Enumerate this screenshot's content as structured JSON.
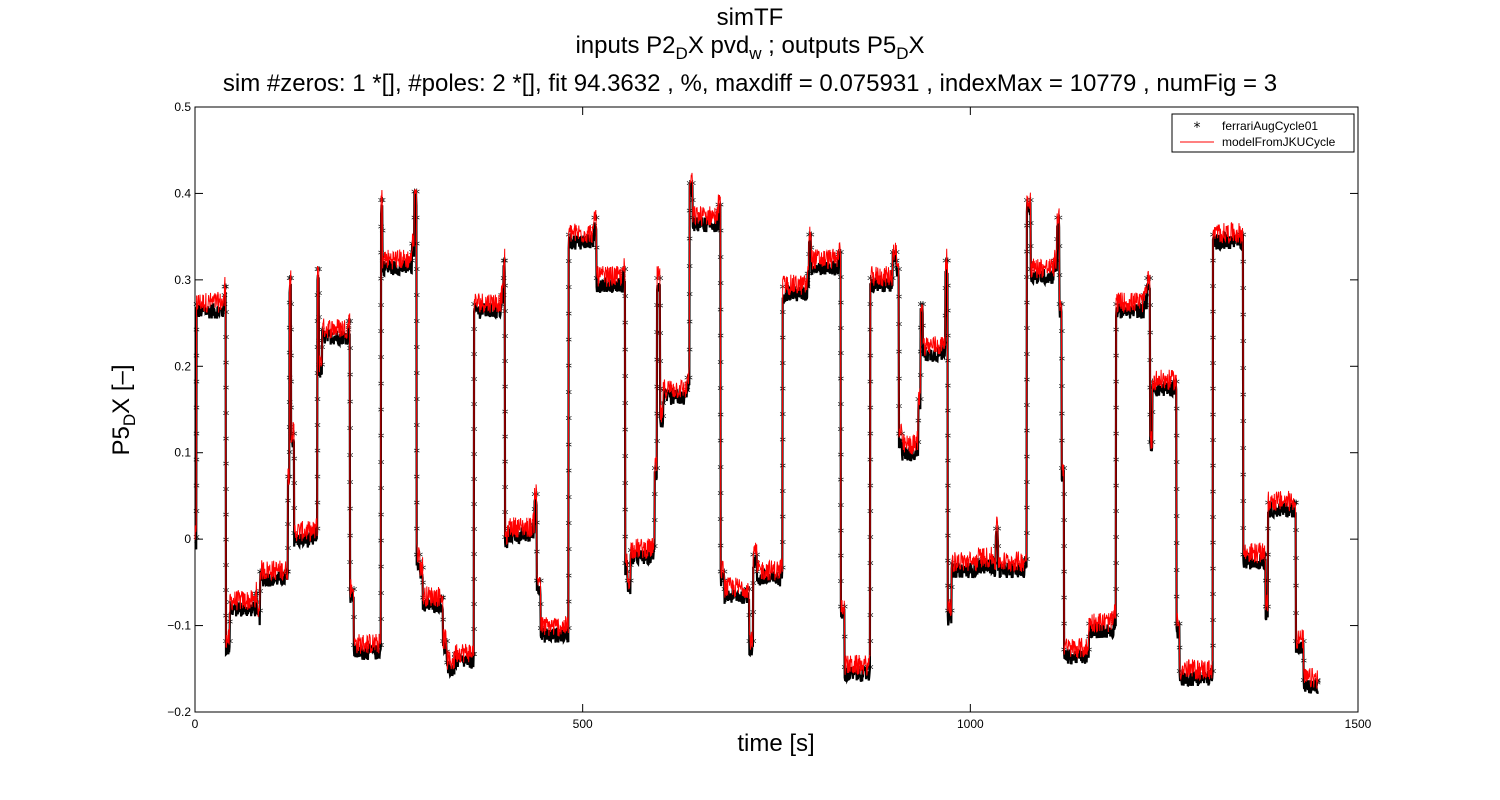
{
  "title": {
    "line1": "simTF",
    "line2_pre": "inputs P2",
    "line2_sub1": "D",
    "line2_mid": "X pvd",
    "line2_sub2": "w",
    "line2_mid2": " ; outputs P5",
    "line2_sub3": "D",
    "line2_post": "X",
    "line3": "sim #zeros:  1 *[], #poles:  2 *[], fit  94.3632 , %, maxdiff =  0.075931 , indexMax =  10779 , numFig =  3"
  },
  "axes": {
    "xlabel": "time [s]",
    "ylabel_pre": "P5",
    "ylabel_sub": "D",
    "ylabel_post": "X [–]"
  },
  "colors": {
    "measured": "#000000",
    "model": "#ff0000"
  },
  "chart_data": {
    "type": "line",
    "xlim": [
      0,
      1500
    ],
    "ylim": [
      -0.2,
      0.5
    ],
    "xticks": [
      0,
      500,
      1000,
      1500
    ],
    "xtick_labels": [
      "0",
      "500",
      "1000",
      "1500"
    ],
    "yticks": [
      -0.2,
      -0.1,
      0,
      0.1,
      0.2,
      0.3,
      0.4,
      0.5
    ],
    "ytick_labels": [
      "−0.2",
      "−0.1",
      "0",
      "0.1",
      "0.2",
      "0.3",
      "0.4",
      "0.5"
    ],
    "grid": false,
    "legend_position": "top-right",
    "series": [
      {
        "name": "ferrariAugCycle01",
        "marker": "asterisk",
        "color": "#000000"
      },
      {
        "name": "modelFromJKUCycle",
        "marker": "line",
        "color": "#ff0000"
      }
    ],
    "levels": [
      [
        0,
        0.0
      ],
      [
        2,
        0.27
      ],
      [
        38,
        0.29
      ],
      [
        40,
        -0.12
      ],
      [
        45,
        -0.075
      ],
      [
        78,
        -0.065
      ],
      [
        80,
        -0.085
      ],
      [
        84,
        -0.04
      ],
      [
        118,
        -0.04
      ],
      [
        120,
        0.07
      ],
      [
        122,
        0.3
      ],
      [
        124,
        0.12
      ],
      [
        128,
        0.005
      ],
      [
        155,
        0.01
      ],
      [
        158,
        0.31
      ],
      [
        160,
        0.2
      ],
      [
        164,
        0.24
      ],
      [
        198,
        0.25
      ],
      [
        200,
        -0.06
      ],
      [
        205,
        -0.125
      ],
      [
        238,
        -0.125
      ],
      [
        240,
        0.39
      ],
      [
        242,
        0.32
      ],
      [
        280,
        0.34
      ],
      [
        283,
        0.4
      ],
      [
        286,
        -0.02
      ],
      [
        290,
        -0.035
      ],
      [
        294,
        -0.07
      ],
      [
        318,
        -0.07
      ],
      [
        320,
        -0.12
      ],
      [
        325,
        -0.145
      ],
      [
        335,
        -0.135
      ],
      [
        358,
        -0.135
      ],
      [
        360,
        0.27
      ],
      [
        395,
        0.28
      ],
      [
        398,
        0.32
      ],
      [
        400,
        0.0
      ],
      [
        404,
        0.01
      ],
      [
        435,
        0.015
      ],
      [
        438,
        0.05
      ],
      [
        441,
        -0.05
      ],
      [
        446,
        -0.105
      ],
      [
        478,
        -0.105
      ],
      [
        482,
        0.35
      ],
      [
        515,
        0.37
      ],
      [
        518,
        0.3
      ],
      [
        552,
        0.31
      ],
      [
        555,
        -0.03
      ],
      [
        558,
        -0.05
      ],
      [
        562,
        -0.015
      ],
      [
        590,
        -0.01
      ],
      [
        593,
        0.08
      ],
      [
        596,
        0.3
      ],
      [
        600,
        0.14
      ],
      [
        604,
        0.17
      ],
      [
        635,
        0.185
      ],
      [
        638,
        0.41
      ],
      [
        642,
        0.37
      ],
      [
        675,
        0.385
      ],
      [
        678,
        -0.04
      ],
      [
        683,
        -0.06
      ],
      [
        712,
        -0.06
      ],
      [
        715,
        -0.12
      ],
      [
        720,
        -0.02
      ],
      [
        725,
        -0.04
      ],
      [
        755,
        -0.035
      ],
      [
        758,
        0.29
      ],
      [
        790,
        0.305
      ],
      [
        792,
        0.35
      ],
      [
        795,
        0.32
      ],
      [
        830,
        0.33
      ],
      [
        833,
        -0.08
      ],
      [
        838,
        -0.15
      ],
      [
        868,
        -0.15
      ],
      [
        871,
        0.3
      ],
      [
        900,
        0.33
      ],
      [
        905,
        0.31
      ],
      [
        908,
        0.12
      ],
      [
        912,
        0.105
      ],
      [
        930,
        0.11
      ],
      [
        933,
        0.16
      ],
      [
        936,
        0.27
      ],
      [
        939,
        0.22
      ],
      [
        965,
        0.225
      ],
      [
        968,
        0.32
      ],
      [
        971,
        -0.085
      ],
      [
        976,
        -0.03
      ],
      [
        1005,
        -0.03
      ],
      [
        1010,
        -0.025
      ],
      [
        1030,
        -0.03
      ],
      [
        1033,
        0.01
      ],
      [
        1036,
        -0.03
      ],
      [
        1070,
        -0.025
      ],
      [
        1073,
        0.39
      ],
      [
        1078,
        0.31
      ],
      [
        1108,
        0.32
      ],
      [
        1112,
        0.37
      ],
      [
        1115,
        0.27
      ],
      [
        1118,
        0.08
      ],
      [
        1121,
        -0.13
      ],
      [
        1150,
        -0.13
      ],
      [
        1153,
        -0.1
      ],
      [
        1185,
        -0.09
      ],
      [
        1188,
        0.27
      ],
      [
        1224,
        0.28
      ],
      [
        1228,
        0.3
      ],
      [
        1232,
        0.11
      ],
      [
        1235,
        0.18
      ],
      [
        1262,
        0.18
      ],
      [
        1266,
        -0.1
      ],
      [
        1270,
        -0.155
      ],
      [
        1310,
        -0.155
      ],
      [
        1313,
        0.35
      ],
      [
        1348,
        0.35
      ],
      [
        1352,
        -0.02
      ],
      [
        1378,
        -0.02
      ],
      [
        1381,
        -0.08
      ],
      [
        1384,
        0.04
      ],
      [
        1418,
        0.04
      ],
      [
        1420,
        -0.12
      ],
      [
        1430,
        -0.165
      ],
      [
        1448,
        -0.168
      ]
    ]
  }
}
